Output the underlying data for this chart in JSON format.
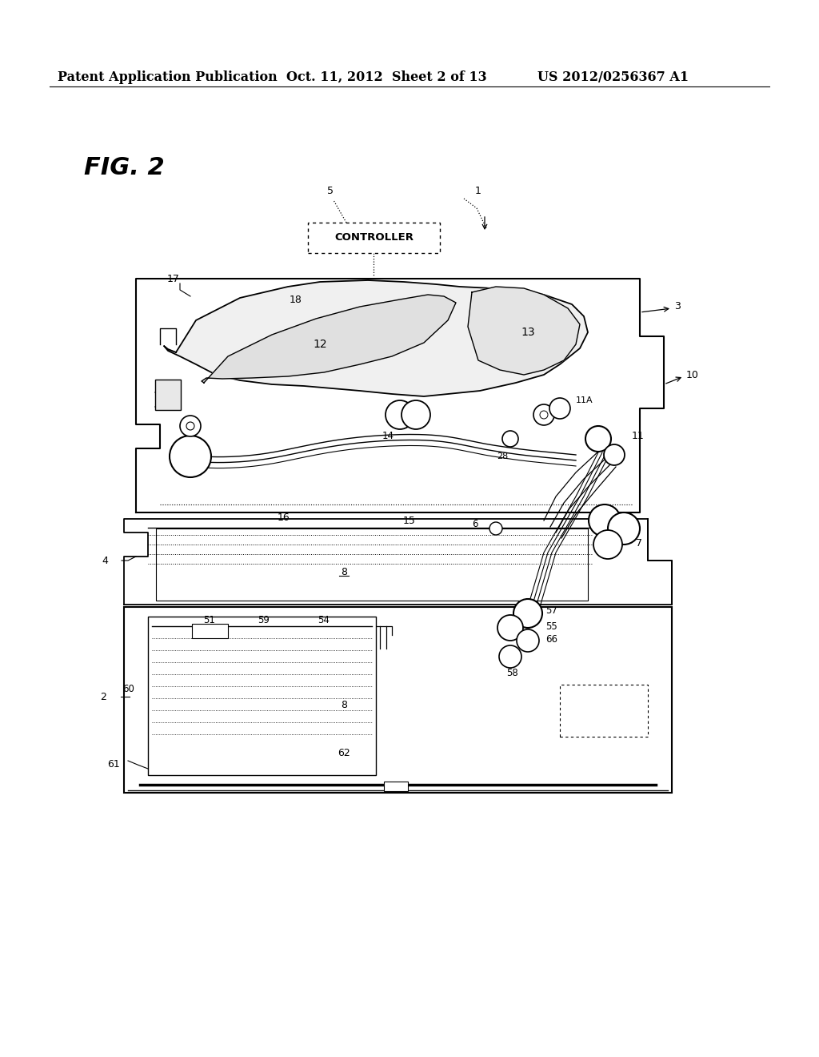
{
  "bg_color": "#ffffff",
  "header_left": "Patent Application Publication",
  "header_center": "Oct. 11, 2012  Sheet 2 of 13",
  "header_right": "US 2012/0256367 A1",
  "fig_label": "FIG. 2",
  "header_fontsize": 11.5,
  "fig_label_fontsize": 22
}
